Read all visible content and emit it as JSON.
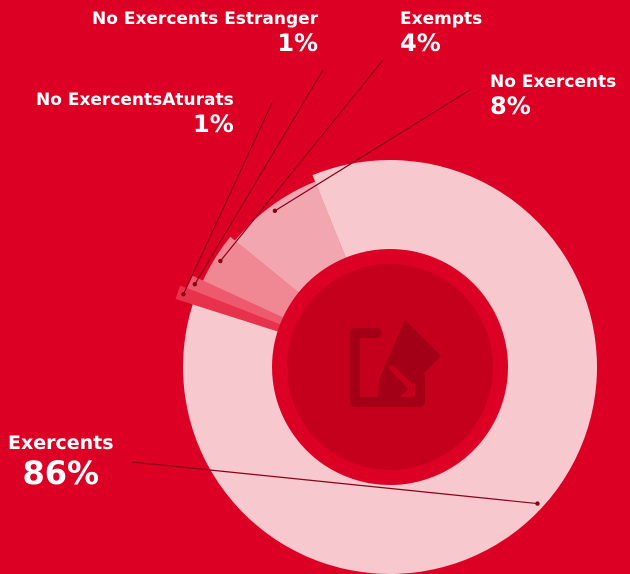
{
  "chart_data": {
    "type": "pie",
    "title": "",
    "slices": [
      {
        "label": "Exercents",
        "value": 86,
        "display": "86%",
        "color": "#f7c9ce"
      },
      {
        "label": "No ExercentsAturats",
        "value": 1,
        "display": "1%",
        "color": "#e8324c"
      },
      {
        "label": "No Exercents Estranger",
        "value": 1,
        "display": "1%",
        "color": "#ee5a6d"
      },
      {
        "label": "Exempts",
        "value": 4,
        "display": "4%",
        "color": "#f08894"
      },
      {
        "label": "No Exercents",
        "value": 8,
        "display": "8%",
        "color": "#f2a7b0"
      }
    ]
  },
  "center_icon": "edit-document-icon",
  "colors": {
    "background": "#dc0025",
    "center_disc": "#c4001c",
    "center_ring": "#dc0025",
    "icon": "#a30018",
    "leader": "#8a0016"
  }
}
